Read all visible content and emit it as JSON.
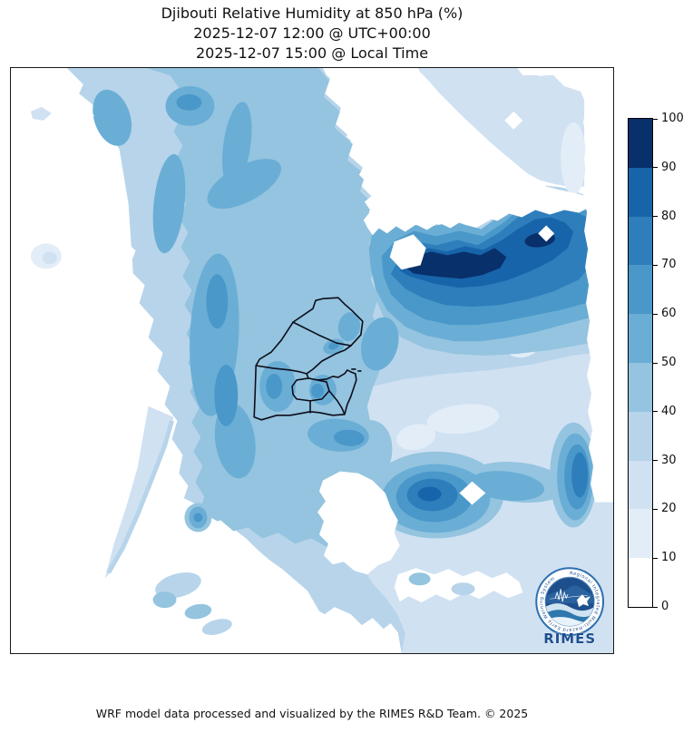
{
  "title": {
    "line1": "Djibouti Relative Humidity at 850 hPa (%)",
    "line2": "2025-12-07 12:00 @ UTC+00:00",
    "line3": "2025-12-07 15:00 @ Local Time"
  },
  "footer": {
    "credit": "WRF model data processed and visualized by the RIMES R&D Team. © 2025"
  },
  "logo": {
    "name": "RIMES",
    "ring_text": "Regional Integrated Multi-Hazard Early Warning System"
  },
  "chart_data": {
    "type": "heatmap",
    "title": "Djibouti Relative Humidity at 850 hPa (%)",
    "variable": "Relative Humidity",
    "pressure_level": "850 hPa",
    "units": "%",
    "valid_time_utc": "2025-12-07 12:00 @ UTC+00:00",
    "valid_time_local": "2025-12-07 15:00 @ Local Time",
    "region": "Djibouti and surrounding area",
    "overlays": [
      "Djibouti national boundary",
      "Djibouti regional administrative boundaries"
    ],
    "legend_position": "right",
    "colorbar": {
      "min": 0,
      "max": 100,
      "tick_step": 10,
      "ticks": [
        0,
        10,
        20,
        30,
        40,
        50,
        60,
        70,
        80,
        90,
        100
      ],
      "levels": [
        {
          "range": "0-10",
          "color": "#ffffff"
        },
        {
          "range": "10-20",
          "color": "#e2edf8"
        },
        {
          "range": "20-30",
          "color": "#d0e1f2"
        },
        {
          "range": "30-40",
          "color": "#b7d4ea"
        },
        {
          "range": "40-50",
          "color": "#94c4df"
        },
        {
          "range": "50-60",
          "color": "#6aaed6"
        },
        {
          "range": "60-70",
          "color": "#4a98c9"
        },
        {
          "range": "70-80",
          "color": "#2e7ebc"
        },
        {
          "range": "80-90",
          "color": "#1864aa"
        },
        {
          "range": "90-100",
          "color": "#08306b"
        }
      ]
    },
    "features": [
      {
        "area": "west and northwest edge of domain",
        "rh_percent": "0-10"
      },
      {
        "area": "bottom-left quadrant",
        "rh_percent": "0-10"
      },
      {
        "area": "upper-left / north-central field",
        "rh_percent": "30-60"
      },
      {
        "area": "diagonal dry band upper centre-right",
        "rh_percent": "0-10"
      },
      {
        "area": "top-right corner field",
        "rh_percent": "20-30"
      },
      {
        "area": "narrow east-west moist band north of centre-right",
        "rh_percent": "90-100"
      },
      {
        "area": "band west of Djibouti border",
        "rh_percent": "50-70"
      },
      {
        "area": "Djibouti interior",
        "rh_percent": "30-60"
      },
      {
        "area": "south-central moist blob",
        "rh_percent": "60-80"
      },
      {
        "area": "hook at right edge, lower third",
        "rh_percent": "50-80"
      },
      {
        "area": "southeast lowland field",
        "rh_percent": "20-30"
      }
    ]
  }
}
